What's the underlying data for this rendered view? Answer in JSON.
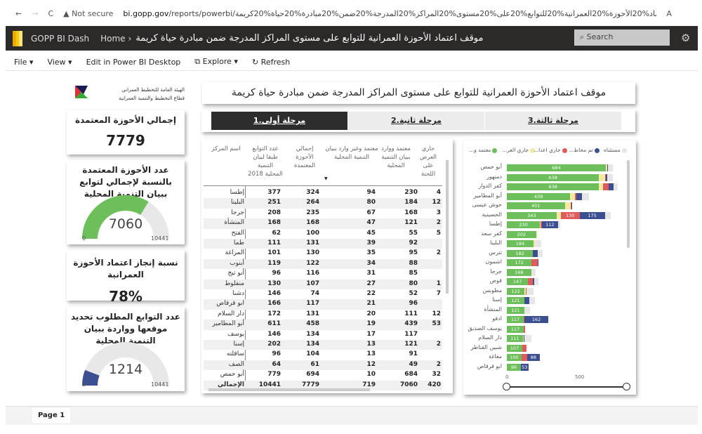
{
  "browser": {
    "back": "←",
    "forward": "→",
    "reload": "C",
    "security": "▲ Not secure",
    "domain": "bi.gopp.gov",
    "path": "/reports/powerbi/موقف%20اعتماد%20الأحوزة%20العمرانية%20للتوابع%20على%20مستوى%20المراكز%20المدرجة%20ضمن%20مبادرة%20حياة%20كريمة",
    "reader": "A"
  },
  "appbar": {
    "app": "GOPP BI Dash",
    "home": "Home",
    "sep": "›",
    "title": "موقف اعتماد الأحوزة العمرانية للتوابع على مستوى المراكز المدرجة ضمن مبادرة حياة كريمة",
    "search": "⌕ Search",
    "gear": "⚙"
  },
  "toolbar": {
    "file": "File ▾",
    "view": "View ▾",
    "edit": "Edit in Power BI Desktop",
    "explore": "⧉ Explore ▾",
    "refresh": "↻ Refresh"
  },
  "org": {
    "line1": "الهيئة العامة للتخطيط العمراني",
    "line2": "قطاع التخطيط والتنمية العمرانية"
  },
  "kpi1": {
    "title": "إجمالي الأحوزة المعتمدة",
    "value": "7779"
  },
  "gauge1": {
    "title": "عدد الأحوزة المعتمدة بالنسبة لإجمالي لتوابع ببيان التنمية المحلية",
    "value": 7060,
    "min": 0,
    "max": 10441,
    "value_label": "7060",
    "min_label": "0",
    "max_label": "10441",
    "color": "#6cbf5a"
  },
  "kpi2": {
    "title": "نسبة إنجاز اعتماد الأحوزة العمرانية",
    "value": "78%"
  },
  "gauge2": {
    "title": "عدد التوابع المطلوب تحديد موقعها وواردة ببيان التنمية المحلية",
    "value": 1214,
    "min": 0,
    "max": 10441,
    "value_label": "1214",
    "min_label": "0",
    "max_label": "10441",
    "color": "#3b4f91"
  },
  "banner": "موقف اعتماد الأحوزة العمرانية للتوابع على مستوى المراكز المدرجة ضمن مبادرة حياة كريمة",
  "tabs": [
    {
      "label": "مرحلة أولى.1",
      "active": true
    },
    {
      "label": "مرحلة ثانية.2",
      "active": false
    },
    {
      "label": "مرحلة ثالثة.3",
      "active": false
    }
  ],
  "table": {
    "headers": [
      "اسم المركز",
      "عدد التوابع طبقا لبيان التنمية المحلية 2018",
      "إجمالي الأحوزة المعتمدة",
      "معتمد وغير وارد ببيان التنمية المحلية",
      "معتمد ووارد ببيان التنمية المحلية",
      "جاري العرض على اللجنة"
    ],
    "sort_indicator": "▼",
    "rows": [
      [
        "إطسا",
        "377",
        "324",
        "94",
        "230",
        "4"
      ],
      [
        "البلينا",
        "251",
        "264",
        "80",
        "184",
        "12"
      ],
      [
        "جرجا",
        "208",
        "235",
        "67",
        "168",
        "3"
      ],
      [
        "المنشأة",
        "168",
        "168",
        "47",
        "121",
        "2"
      ],
      [
        "الفتح",
        "62",
        "100",
        "45",
        "55",
        "5"
      ],
      [
        "طما",
        "111",
        "131",
        "39",
        "92",
        ""
      ],
      [
        "المراغة",
        "101",
        "130",
        "35",
        "95",
        "2"
      ],
      [
        "أبنوب",
        "119",
        "122",
        "34",
        "88",
        ""
      ],
      [
        "أبو تيج",
        "96",
        "116",
        "31",
        "85",
        ""
      ],
      [
        "منفلوط",
        "130",
        "107",
        "27",
        "80",
        "1"
      ],
      [
        "دشنا",
        "146",
        "74",
        "22",
        "52",
        "7"
      ],
      [
        "ابو قرقاص",
        "166",
        "117",
        "21",
        "96",
        ""
      ],
      [
        "دار السلام",
        "172",
        "131",
        "20",
        "111",
        "12"
      ],
      [
        "أبو المطامير",
        "611",
        "458",
        "19",
        "439",
        "53"
      ],
      [
        "يوسف",
        "146",
        "134",
        "17",
        "117",
        ""
      ],
      [
        "إسنا",
        "202",
        "134",
        "13",
        "121",
        "2"
      ],
      [
        "ساقلته",
        "96",
        "104",
        "13",
        "91",
        ""
      ],
      [
        "الصف",
        "64",
        "61",
        "12",
        "49",
        "2"
      ],
      [
        "أبو حمص",
        "779",
        "694",
        "10",
        "684",
        "32"
      ]
    ],
    "total": [
      "الإجمالي",
      "10441",
      "7779",
      "719",
      "7060",
      "420"
    ]
  },
  "chart_data": {
    "type": "bar",
    "orientation": "horizontal",
    "stacked": true,
    "legend_position": "top",
    "series": [
      {
        "name": "معتمد و...",
        "color": "#6cbf5a",
        "values": [
          684,
          638,
          638,
          439,
          401,
          343,
          230,
          202,
          184,
          182,
          172,
          168,
          147,
          122,
          121,
          121,
          117,
          117,
          111,
          107,
          100,
          96
        ]
      },
      {
        "name": "جاري العر...",
        "color": "#f3eaa0",
        "values": [
          12,
          40,
          25,
          30,
          40,
          30,
          4,
          5,
          12,
          0,
          0,
          0,
          0,
          8,
          0,
          0,
          0,
          0,
          5,
          0,
          0,
          0
        ]
      },
      {
        "name": "جاري اعدا...",
        "color": "#e05c5c",
        "values": [
          0,
          8,
          40,
          10,
          8,
          130,
          8,
          0,
          0,
          0,
          40,
          0,
          35,
          6,
          0,
          0,
          6,
          8,
          0,
          30,
          40,
          0
        ]
      },
      {
        "name": "تم مخاط...",
        "color": "#3b4f91",
        "values": [
          5,
          6,
          35,
          40,
          2,
          175,
          112,
          0,
          0,
          30,
          6,
          0,
          8,
          0,
          35,
          0,
          162,
          0,
          6,
          0,
          88,
          53
        ]
      },
      {
        "name": "مستثناه",
        "color": "#e6e6e6",
        "values": [
          30,
          40,
          30,
          50,
          0,
          40,
          15,
          0,
          40,
          35,
          0,
          30,
          30,
          50,
          40,
          40,
          0,
          0,
          50,
          0,
          0,
          0
        ]
      }
    ],
    "categories": [
      "أبو حمص",
      "دمنهور",
      "كفر الدوار",
      "أبو المطامير",
      "حوش عيسى",
      "الحسينية",
      "إطسا",
      "كفر سعد",
      "البلينا",
      "تترس",
      "اشمون",
      "جرجا",
      "قوص",
      "مطوبس",
      "إسنا",
      "المنشأة",
      "ادفو",
      "يوسف الصديق",
      "دار السلام",
      "شبين القناطر",
      "مغاغة",
      "ابو قرقاص"
    ],
    "data_labels": [
      "684",
      "638",
      "638",
      "439",
      "401",
      "343",
      "230",
      "202",
      "184",
      "182",
      "172",
      "168",
      "147",
      "122",
      "121",
      "121",
      "117",
      "117",
      "111",
      "107",
      "100",
      "96"
    ],
    "extra_labels": [
      {
        "category": "الحسينية",
        "series": "جاري اعدا...",
        "label": "130"
      },
      {
        "category": "الحسينية",
        "series": "تم مخاط...",
        "label": "175"
      },
      {
        "category": "إطسا",
        "series": "تم مخاط...",
        "label": "112"
      },
      {
        "category": "ادفو",
        "series": "تم مخاط...",
        "label": "162"
      },
      {
        "category": "مغاغة",
        "series": "تم مخاط...",
        "label": "88"
      },
      {
        "category": "ابو قرقاص",
        "series": "تم مخاط...",
        "label": "53"
      }
    ],
    "xticks": [
      "0",
      "500"
    ],
    "xlim": [
      0,
      1200
    ]
  },
  "footer": {
    "page": "Page 1"
  }
}
